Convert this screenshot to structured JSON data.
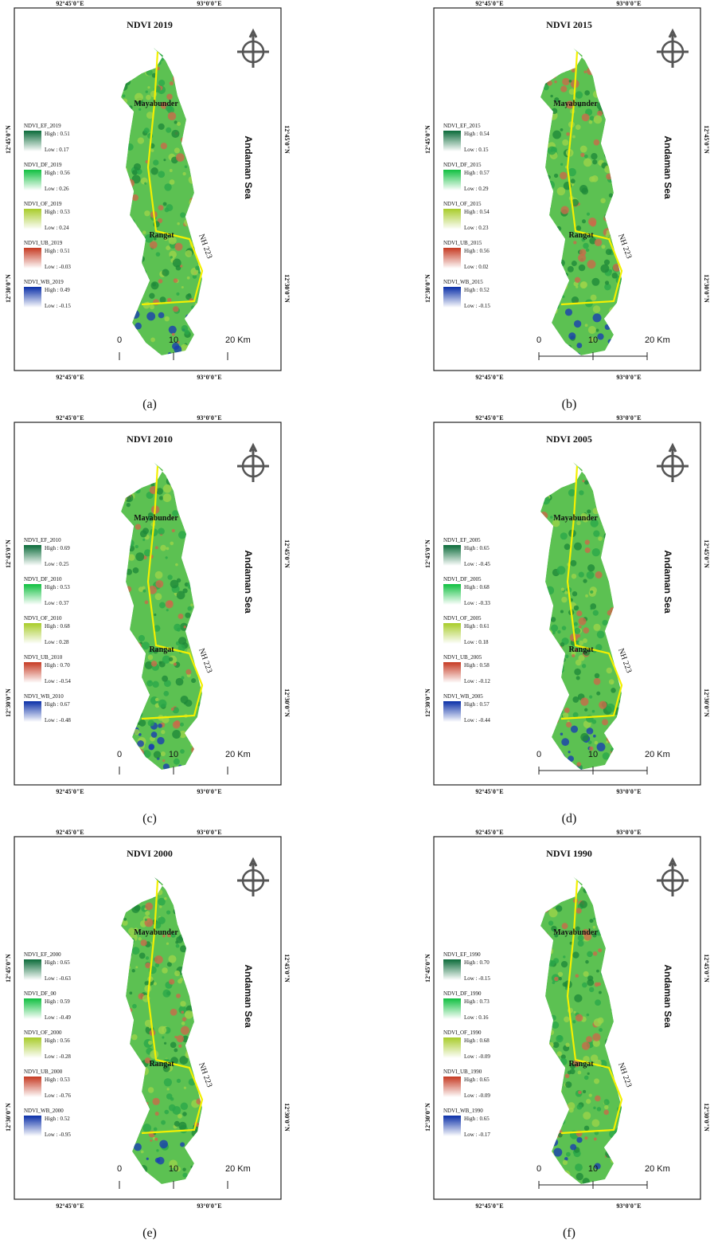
{
  "map": {
    "towns": [
      "Mayabunder",
      "Rangat"
    ],
    "road": "NH 223",
    "sea": "Andaman Sea",
    "lon": [
      "92°45'0\"E",
      "93°0'0\"E"
    ],
    "lat": [
      "12°45'0\"N",
      "12°30'0\"N"
    ],
    "scale": [
      "0",
      "10",
      "20 Km"
    ]
  },
  "panels": [
    {
      "label": "(a)",
      "title": "NDVI 2019",
      "legend": [
        {
          "name": "NDVI_EF_2019",
          "high": "High : 0.51",
          "low": "Low : 0.17"
        },
        {
          "name": "NDVI_DF_2019",
          "high": "High : 0.56",
          "low": "Low : 0.26"
        },
        {
          "name": "NDVI_OF_2019",
          "high": "High : 0.53",
          "low": "Low : 0.24"
        },
        {
          "name": "NDVI_UB_2019",
          "high": "High : 0.51",
          "low": "Low : -0.03"
        },
        {
          "name": "NDVI_WB_2019",
          "high": "High : 0.49",
          "low": "Low : -0.15"
        }
      ]
    },
    {
      "label": "(b)",
      "title": "NDVI 2015",
      "legend": [
        {
          "name": "NDVI_EF_2015",
          "high": "High : 0.54",
          "low": "Low : 0.15"
        },
        {
          "name": "NDVI_DF_2015",
          "high": "High : 0.57",
          "low": "Low : 0.29"
        },
        {
          "name": "NDVI_OF_2015",
          "high": "High : 0.54",
          "low": "Low : 0.23"
        },
        {
          "name": "NDVI_UB_2015",
          "high": "High : 0.56",
          "low": "Low : 0.02"
        },
        {
          "name": "NDVI_WB_2015",
          "high": "High : 0.52",
          "low": "Low : -0.15"
        }
      ]
    },
    {
      "label": "(c)",
      "title": "NDVI 2010",
      "legend": [
        {
          "name": "NDVI_EF_2010",
          "high": "High : 0.69",
          "low": "Low : 0.25"
        },
        {
          "name": "NDVI_DF_2010",
          "high": "High : 0.53",
          "low": "Low : 0.37"
        },
        {
          "name": "NDVI_OF_2010",
          "high": "High : 0.68",
          "low": "Low : 0.28"
        },
        {
          "name": "NDVI_UB_2010",
          "high": "High : 0.70",
          "low": "Low : -0.54"
        },
        {
          "name": "NDVI_WB_2010",
          "high": "High : 0.67",
          "low": "Low : -0.48"
        }
      ]
    },
    {
      "label": "(d)",
      "title": "NDVI 2005",
      "legend": [
        {
          "name": "NDVI_EF_2005",
          "high": "High : 0.65",
          "low": "Low : -0.45"
        },
        {
          "name": "NDVI_DF_2005",
          "high": "High : 0.68",
          "low": "Low : -0.33"
        },
        {
          "name": "NDVI_OF_2005",
          "high": "High : 0.61",
          "low": "Low : 0.18"
        },
        {
          "name": "NDVI_UB_2005",
          "high": "High : 0.58",
          "low": "Low : -0.12"
        },
        {
          "name": "NDVI_WB_2005",
          "high": "High : 0.57",
          "low": "Low : -0.44"
        }
      ]
    },
    {
      "label": "(e)",
      "title": "NDVI 2000",
      "legend": [
        {
          "name": "NDVI_EF_2000",
          "high": "High : 0.65",
          "low": "Low : -0.63"
        },
        {
          "name": "NDVI_DF_00",
          "high": "High : 0.59",
          "low": "Low : -0.49"
        },
        {
          "name": "NDVI_OF_2000",
          "high": "High : 0.56",
          "low": "Low : -0.28"
        },
        {
          "name": "NDVI_UB_2000",
          "high": "High : 0.53",
          "low": "Low : -0.76"
        },
        {
          "name": "NDVI_WB_2000",
          "high": "High : 0.52",
          "low": "Low : -0.95"
        }
      ]
    },
    {
      "label": "(f)",
      "title": "NDVI 1990",
      "legend": [
        {
          "name": "NDVI_EF_1990",
          "high": "High : 0.70",
          "low": "Low : -0.15"
        },
        {
          "name": "NDVI_DF_1990",
          "high": "High : 0.73",
          "low": "Low : 0.16"
        },
        {
          "name": "NDVI_OF_1990",
          "high": "High : 0.68",
          "low": "Low : -0.09"
        },
        {
          "name": "NDVI_UB_1990",
          "high": "High : 0.65",
          "low": "Low : -0.09"
        },
        {
          "name": "NDVI_WB_1990",
          "high": "High : 0.65",
          "low": "Low : -0.17"
        }
      ]
    }
  ]
}
